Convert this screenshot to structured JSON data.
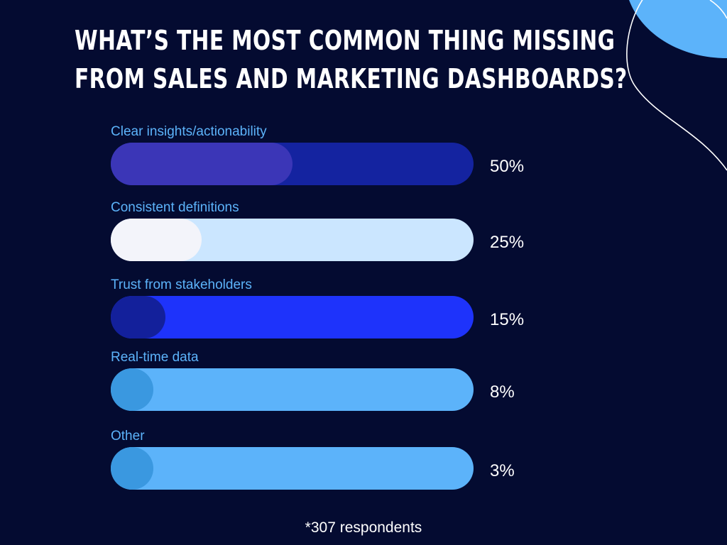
{
  "title_lines": [
    "What’s the most common thing missing",
    "from sales and marketing dashboards?"
  ],
  "footnote": "*307 respondents",
  "colors": {
    "background": "#040b31",
    "label_text": "#5cb3fa",
    "value_text": "#ffffff",
    "decor_blob": "#5cb3fa",
    "decor_line": "#ffffff"
  },
  "chart_data": {
    "type": "bar",
    "orientation": "horizontal",
    "categories": [
      "Clear insights/actionability",
      "Consistent definitions",
      "Trust from stakeholders",
      "Real-time data",
      "Other"
    ],
    "values": [
      50,
      25,
      15,
      8,
      3
    ],
    "value_labels": [
      "50%",
      "25%",
      "15%",
      "8%",
      "3%"
    ],
    "unit": "%",
    "xlim": [
      0,
      100
    ],
    "grid": false,
    "legend": "none",
    "bar_colors": [
      {
        "track": "#1423a0",
        "fill": "#3b36b7"
      },
      {
        "track": "#cbe6ff",
        "fill": "#f3f4fa"
      },
      {
        "track": "#1e33fb",
        "fill": "#13209b"
      },
      {
        "track": "#5cb3fa",
        "fill": "#3a98e0"
      },
      {
        "track": "#5cb3fa",
        "fill": "#3a98e0"
      }
    ]
  }
}
